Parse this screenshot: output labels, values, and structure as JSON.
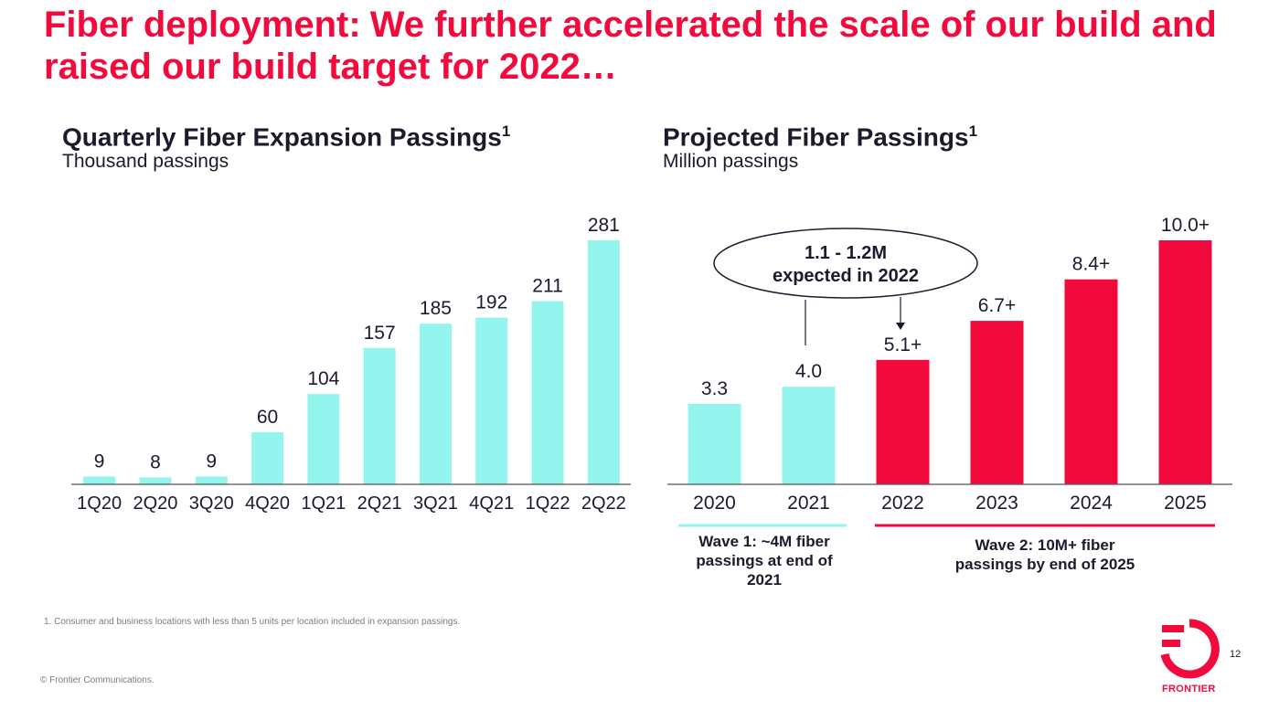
{
  "slide": {
    "title_lead": "Fiber deployment:",
    "title_rest": "We further accelerated the scale of our build and raised our build target for 2022…",
    "footnote": "1. Consumer and business locations with less than 5 units per location included in expansion passings.",
    "copyright": "© Frontier Communications.",
    "page_number": "12",
    "brand": "FRONTIER"
  },
  "colors": {
    "accent_red": "#f20a3c",
    "aqua": "#93f5ee",
    "text_dark": "#1b1b2e"
  },
  "chart_data": [
    {
      "type": "bar",
      "title": "Quarterly Fiber Expansion Passings",
      "title_sup": "1",
      "subtitle": "Thousand passings",
      "categories": [
        "1Q20",
        "2Q20",
        "3Q20",
        "4Q20",
        "1Q21",
        "2Q21",
        "3Q21",
        "4Q21",
        "1Q22",
        "2Q22"
      ],
      "values": [
        9,
        8,
        9,
        60,
        104,
        157,
        185,
        192,
        211,
        281
      ],
      "data_labels": [
        "9",
        "8",
        "9",
        "60",
        "104",
        "157",
        "185",
        "192",
        "211",
        "281"
      ],
      "ylim": [
        0,
        281
      ],
      "color": "#93f5ee"
    },
    {
      "type": "bar",
      "title": "Projected Fiber Passings",
      "title_sup": "1",
      "subtitle": "Million passings",
      "categories": [
        "2020",
        "2021",
        "2022",
        "2023",
        "2024",
        "2025"
      ],
      "values": [
        3.3,
        4.0,
        5.1,
        6.7,
        8.4,
        10.0
      ],
      "data_labels": [
        "3.3",
        "4.0",
        "5.1+",
        "6.7+",
        "8.4+",
        "10.0+"
      ],
      "colors": [
        "#93f5ee",
        "#93f5ee",
        "#f20a3c",
        "#f20a3c",
        "#f20a3c",
        "#f20a3c"
      ],
      "ylim": [
        0,
        10.0
      ],
      "callout": {
        "line1": "1.1 - 1.2M",
        "line2": "expected in 2022"
      },
      "groups": [
        {
          "label": "Wave 1: ~4M fiber passings at end of 2021",
          "color": "#93f5ee"
        },
        {
          "label": "Wave 2: 10M+ fiber passings by end of 2025",
          "color": "#f20a3c"
        }
      ]
    }
  ]
}
